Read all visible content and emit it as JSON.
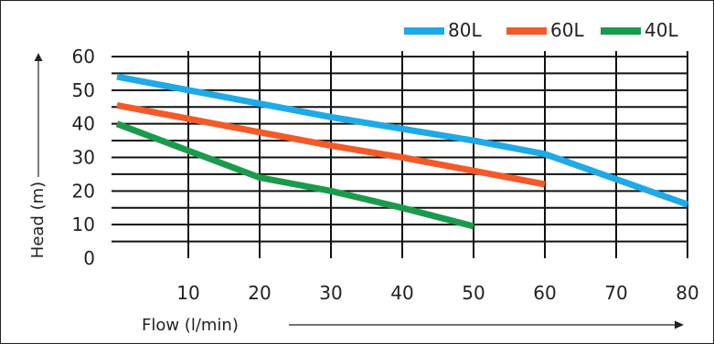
{
  "chart_data": {
    "type": "line",
    "xlabel": "Flow (l/min)",
    "ylabel": "Head (m)",
    "xlim": [
      0,
      80
    ],
    "ylim": [
      0,
      60
    ],
    "x_ticks": [
      "10",
      "20",
      "30",
      "40",
      "50",
      "60",
      "70",
      "80"
    ],
    "y_ticks": [
      "0",
      "10",
      "20",
      "30",
      "40",
      "50",
      "60"
    ],
    "grid": true,
    "legend_position": "top-right",
    "series": [
      {
        "name": "80L",
        "color": "#1fa9e6",
        "x": [
          0,
          10,
          20,
          30,
          40,
          50,
          60,
          70,
          80
        ],
        "y": [
          54,
          50,
          46,
          42,
          38.5,
          35,
          31,
          23.5,
          16
        ]
      },
      {
        "name": "60L",
        "color": "#f25a28",
        "x": [
          0,
          10,
          20,
          30,
          40,
          50,
          60
        ],
        "y": [
          45.5,
          41.5,
          37.5,
          33.5,
          30,
          26,
          22
        ]
      },
      {
        "name": "40L",
        "color": "#1a9b4b",
        "x": [
          0,
          10,
          20,
          30,
          40,
          50
        ],
        "y": [
          40,
          32,
          24,
          20,
          15,
          9.5
        ]
      }
    ]
  }
}
